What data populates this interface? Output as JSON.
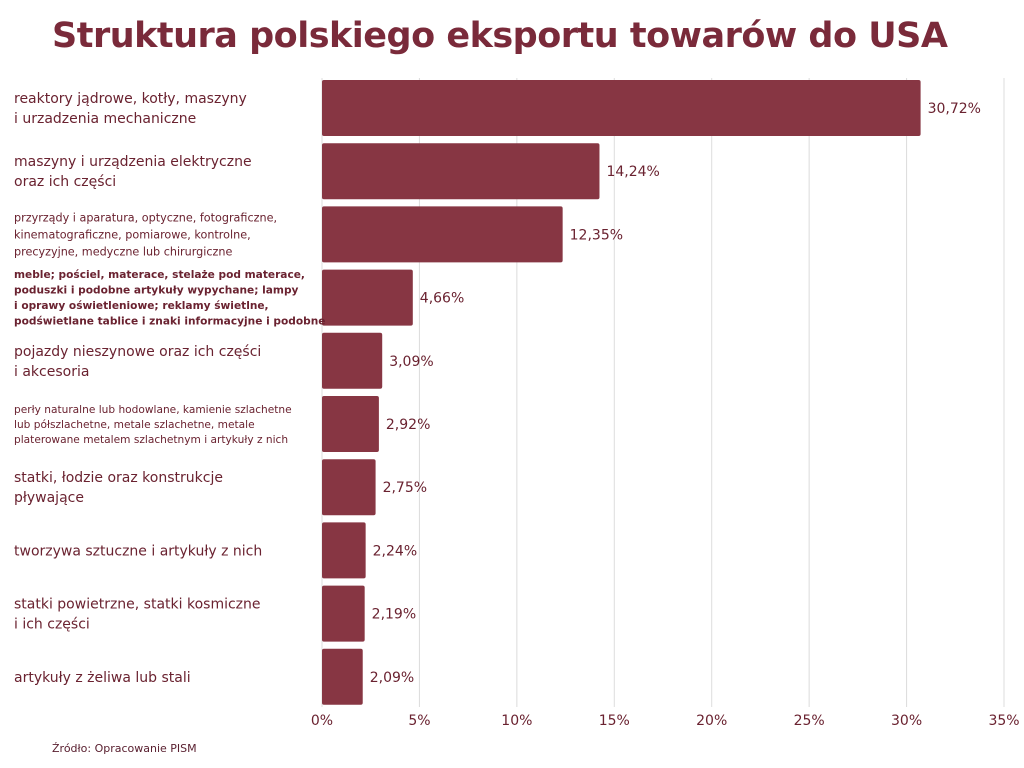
{
  "title": "Struktura polskiego eksportu towarów do USA",
  "source": "Źródło: Opracowanie PISM",
  "colors": {
    "bar": "#873643",
    "text": "#6a2230",
    "grid": "#dcdcdc",
    "title": "#7a2a3a"
  },
  "chart_data": {
    "type": "bar",
    "orientation": "horizontal",
    "categories": [
      "reaktory jądrowe, kotły, maszyny\ni urzadzenia mechaniczne",
      "maszyny i urządzenia elektryczne\noraz ich części",
      "przyrządy i aparatura, optyczne, fotograficzne,\nkinematograficzne, pomiarowe, kontrolne,\nprecyzyjne, medyczne lub chirurgiczne",
      "meble; pościel, materace, stelaże pod materace,\npoduszki i podobne artykuły wypychane; lampy\ni oprawy oświetleniowe; reklamy świetlne,\npodświetlane tablice i znaki informacyjne i podobne",
      "pojazdy nieszynowe oraz ich części\ni akcesoria",
      "perły naturalne lub hodowlane, kamienie szlachetne\nlub półszlachetne, metale szlachetne, metale\nplaterowane metalem szlachetnym i artykuły z nich",
      "statki, łodzie oraz konstrukcje\npływające",
      "tworzywa sztuczne i artykuły z nich",
      "statki powietrzne, statki kosmiczne\ni ich części",
      "artykuły z żeliwa lub stali"
    ],
    "values": [
      30.72,
      14.24,
      12.35,
      4.66,
      3.09,
      2.92,
      2.75,
      2.24,
      2.19,
      2.09
    ],
    "value_labels": [
      "30,72%",
      "14,24%",
      "12,35%",
      "4,66%",
      "3,09%",
      "2,92%",
      "2,75%",
      "2,24%",
      "2,19%",
      "2,09%"
    ],
    "xlim": [
      0,
      35
    ],
    "xticks": [
      0,
      5,
      10,
      15,
      20,
      25,
      30,
      35
    ],
    "xtick_labels": [
      "0%",
      "5%",
      "10%",
      "15%",
      "20%",
      "25%",
      "30%",
      "35%"
    ],
    "grid": true,
    "legend": "none"
  }
}
